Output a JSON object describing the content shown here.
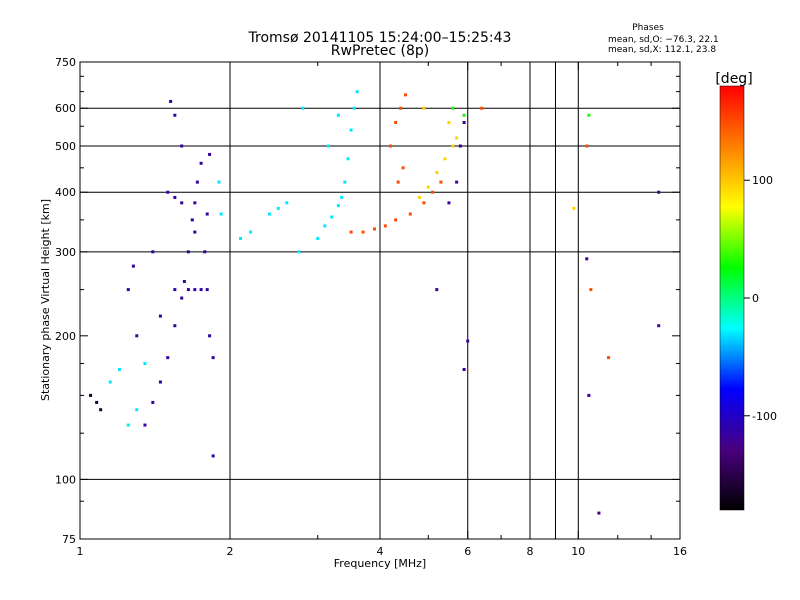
{
  "chart_data": {
    "type": "scatter",
    "title": "Tromsø 20141105 15:24:00–15:25:43",
    "subtitle": "RwPretec (8p)",
    "xlabel": "Frequency [MHz]",
    "ylabel": "Stationary phase Virtual Height [km]",
    "x_scale": "log",
    "y_scale": "log",
    "xlim": [
      1,
      16
    ],
    "ylim": [
      75,
      750
    ],
    "x_ticks": [
      1,
      2,
      4,
      6,
      8,
      10,
      16
    ],
    "y_ticks": [
      75,
      100,
      200,
      300,
      400,
      500,
      600,
      750
    ],
    "x_gridlines": [
      2,
      4,
      6,
      8,
      9,
      10
    ],
    "y_gridlines": [
      100,
      300,
      400,
      500,
      600
    ],
    "x_minor_ticks": [
      3,
      5,
      7,
      9,
      12,
      14
    ],
    "y_minor_ticks": [
      90,
      125,
      150,
      175,
      250,
      350,
      450,
      550,
      650,
      700
    ],
    "grid": true,
    "legend_block": {
      "title": "Phases",
      "lines": [
        "mean, sd,O: −76.3, 22.1",
        "mean, sd,X: 112.1, 23.8"
      ],
      "placement": "top-right"
    },
    "colorbar": {
      "label": "[deg]",
      "range": [
        -180,
        180
      ],
      "ticks": [
        -100,
        0,
        100
      ],
      "colormap": "rainbow",
      "stops": [
        "#000000",
        "#4a0080",
        "#0000ff",
        "#00ffff",
        "#00ff00",
        "#ffff00",
        "#ff8000",
        "#ff0000"
      ]
    },
    "series": [
      {
        "phase": -115,
        "points": [
          [
            1.35,
            130
          ],
          [
            1.4,
            145
          ],
          [
            1.45,
            160
          ],
          [
            1.5,
            180
          ],
          [
            1.55,
            210
          ],
          [
            1.6,
            240
          ],
          [
            1.62,
            260
          ],
          [
            1.65,
            300
          ],
          [
            1.68,
            350
          ],
          [
            1.7,
            380
          ],
          [
            1.72,
            420
          ],
          [
            1.75,
            460
          ],
          [
            1.52,
            620
          ],
          [
            1.55,
            580
          ],
          [
            1.6,
            500
          ],
          [
            1.7,
            330
          ],
          [
            1.78,
            300
          ],
          [
            1.8,
            250
          ],
          [
            1.82,
            200
          ],
          [
            1.85,
            180
          ],
          [
            1.85,
            112
          ],
          [
            1.3,
            200
          ],
          [
            1.25,
            250
          ],
          [
            1.28,
            280
          ],
          [
            1.4,
            300
          ],
          [
            1.45,
            220
          ],
          [
            1.55,
            250
          ],
          [
            1.65,
            250
          ],
          [
            1.7,
            250
          ],
          [
            1.75,
            250
          ],
          [
            1.8,
            360
          ],
          [
            1.82,
            480
          ],
          [
            1.5,
            400
          ],
          [
            1.55,
            390
          ],
          [
            1.6,
            380
          ]
        ]
      },
      {
        "phase": -160,
        "points": [
          [
            1.05,
            150
          ],
          [
            1.1,
            140
          ],
          [
            1.08,
            145
          ]
        ]
      },
      {
        "phase": -30,
        "points": [
          [
            1.25,
            130
          ],
          [
            1.3,
            140
          ],
          [
            1.35,
            175
          ],
          [
            1.2,
            170
          ],
          [
            1.15,
            160
          ],
          [
            1.9,
            420
          ],
          [
            1.92,
            360
          ],
          [
            2.1,
            320
          ],
          [
            2.2,
            330
          ],
          [
            2.4,
            360
          ],
          [
            2.5,
            370
          ],
          [
            2.6,
            380
          ],
          [
            2.75,
            300
          ],
          [
            3.0,
            320
          ],
          [
            3.1,
            340
          ],
          [
            3.2,
            355
          ],
          [
            3.3,
            375
          ],
          [
            3.35,
            390
          ],
          [
            3.4,
            420
          ],
          [
            3.45,
            470
          ],
          [
            3.5,
            540
          ],
          [
            3.55,
            600
          ],
          [
            3.6,
            650
          ],
          [
            3.15,
            500
          ],
          [
            3.3,
            580
          ],
          [
            2.8,
            600
          ]
        ]
      },
      {
        "phase": 150,
        "points": [
          [
            3.5,
            330
          ],
          [
            3.7,
            330
          ],
          [
            3.9,
            335
          ],
          [
            4.1,
            340
          ],
          [
            4.3,
            350
          ],
          [
            4.6,
            360
          ],
          [
            4.9,
            380
          ],
          [
            5.1,
            400
          ],
          [
            5.3,
            420
          ],
          [
            4.2,
            500
          ],
          [
            4.3,
            560
          ],
          [
            4.4,
            600
          ],
          [
            4.5,
            640
          ],
          [
            4.35,
            420
          ],
          [
            4.45,
            450
          ],
          [
            6.4,
            600
          ],
          [
            10.4,
            500
          ],
          [
            10.6,
            250
          ],
          [
            11.5,
            180
          ]
        ]
      },
      {
        "phase": 95,
        "points": [
          [
            4.8,
            390
          ],
          [
            5.0,
            410
          ],
          [
            5.2,
            440
          ],
          [
            5.4,
            470
          ],
          [
            5.6,
            500
          ],
          [
            5.7,
            520
          ],
          [
            4.9,
            600
          ],
          [
            5.5,
            560
          ],
          [
            9.8,
            370
          ]
        ]
      },
      {
        "phase": -120,
        "points": [
          [
            5.5,
            380
          ],
          [
            5.7,
            420
          ],
          [
            5.8,
            500
          ],
          [
            5.9,
            560
          ],
          [
            5.2,
            250
          ],
          [
            6.0,
            195
          ],
          [
            5.9,
            170
          ],
          [
            10.4,
            290
          ],
          [
            10.5,
            150
          ],
          [
            11.0,
            85
          ],
          [
            14.5,
            210
          ],
          [
            14.5,
            400
          ]
        ]
      },
      {
        "phase": 30,
        "points": [
          [
            5.9,
            580
          ],
          [
            5.6,
            600
          ],
          [
            10.5,
            580
          ]
        ]
      }
    ]
  }
}
